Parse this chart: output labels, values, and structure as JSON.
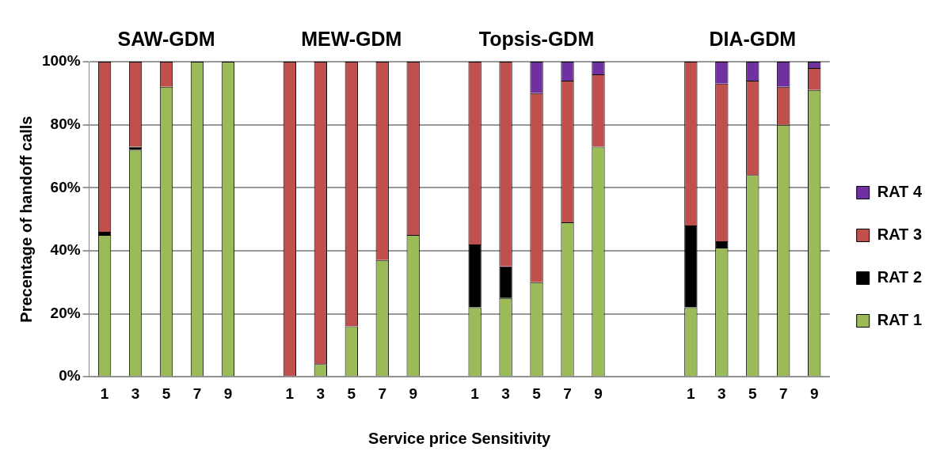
{
  "chart_data": {
    "type": "bar",
    "stacked": true,
    "xlabel": "Service price Sensitivity",
    "ylabel": "Precentage of handoff calls",
    "annotations": [
      "SAW-GDM",
      "MEW-GDM",
      "Topsis-GDM",
      "DIA-GDM"
    ],
    "categories": [
      "1",
      "3",
      "5",
      "7",
      "9",
      null,
      "1",
      "3",
      "5",
      "7",
      "9",
      null,
      "1",
      "3",
      "5",
      "7",
      "9",
      null,
      null,
      "1",
      "3",
      "5",
      "7",
      "9"
    ],
    "series": [
      {
        "name": "RAT 1",
        "color": "#9bbb59",
        "values": [
          45,
          72,
          92,
          100,
          100,
          null,
          0,
          4,
          16,
          37,
          45,
          null,
          22,
          25,
          30,
          49,
          73,
          null,
          null,
          22,
          41,
          64,
          80,
          91
        ]
      },
      {
        "name": "RAT 2",
        "color": "#000000",
        "values": [
          1,
          1,
          0,
          0,
          0,
          null,
          0,
          0,
          0,
          0,
          0,
          null,
          20,
          10,
          0,
          0,
          0,
          null,
          null,
          26,
          2,
          0,
          0,
          0
        ]
      },
      {
        "name": "RAT 3",
        "color": "#c0504d",
        "values": [
          54,
          27,
          8,
          0,
          0,
          null,
          100,
          96,
          84,
          63,
          55,
          null,
          58,
          65,
          60,
          45,
          23,
          null,
          null,
          52,
          50,
          30,
          12,
          7
        ]
      },
      {
        "name": "RAT 4",
        "color": "#7030a0",
        "values": [
          0,
          0,
          0,
          0,
          0,
          null,
          0,
          0,
          0,
          0,
          0,
          null,
          0,
          0,
          10,
          6,
          4,
          null,
          null,
          0,
          7,
          6,
          8,
          2
        ]
      }
    ],
    "ylim": [
      0,
      100
    ],
    "yticks": [
      {
        "value": 0,
        "label": "0%"
      },
      {
        "value": 20,
        "label": "20%"
      },
      {
        "value": 40,
        "label": "40%"
      },
      {
        "value": 60,
        "label": "60%"
      },
      {
        "value": 80,
        "label": "80%"
      },
      {
        "value": 100,
        "label": "100%"
      }
    ],
    "grid": "y",
    "legend": "right"
  }
}
